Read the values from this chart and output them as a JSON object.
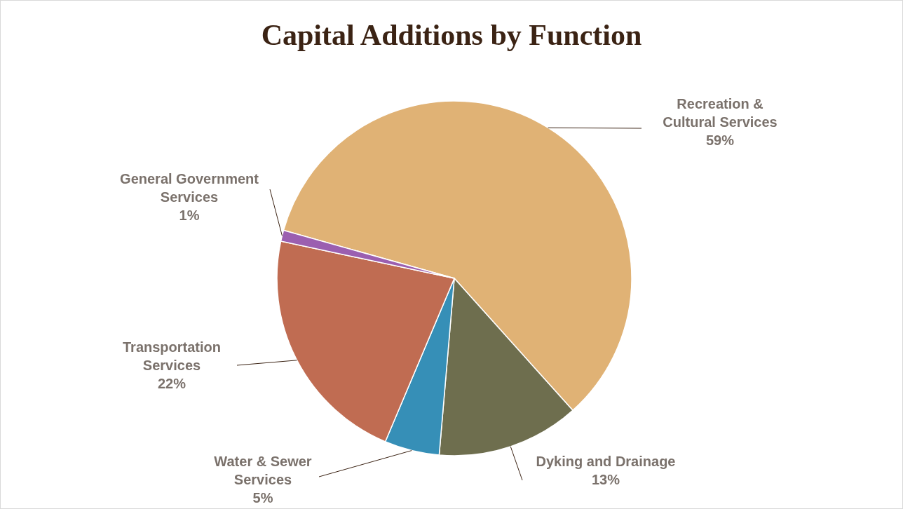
{
  "chart_data": {
    "type": "pie",
    "title": "Capital Additions by Function",
    "categories": [
      "Recreation & Cultural Services",
      "Dyking and Drainage",
      "Water & Sewer Services",
      "Transportation Services",
      "General Government Services"
    ],
    "values": [
      59,
      13,
      5,
      22,
      1
    ],
    "value_labels": [
      "59%",
      "13%",
      "5%",
      "22%",
      "1%"
    ],
    "colors": [
      "#e0b275",
      "#6e6e4e",
      "#368fb7",
      "#c06c52",
      "#9b5fb0"
    ]
  }
}
